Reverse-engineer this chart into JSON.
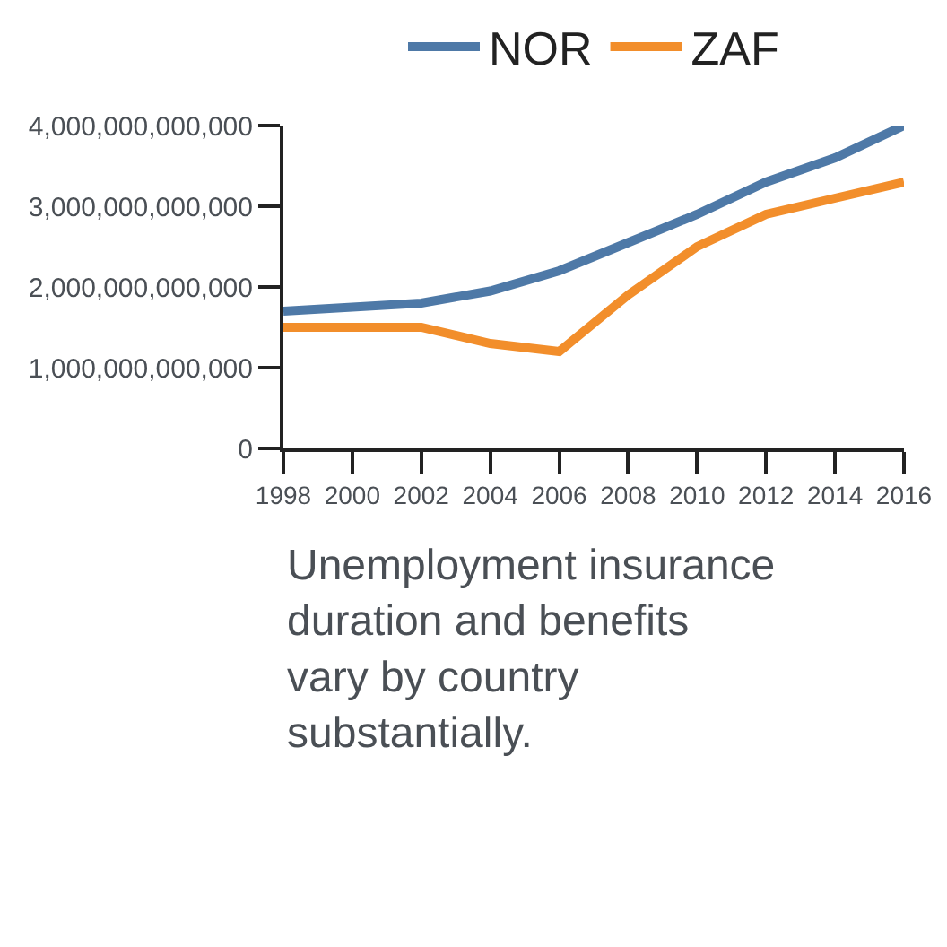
{
  "chart_data": {
    "type": "line",
    "x": [
      1998,
      2000,
      2002,
      2004,
      2006,
      2008,
      2010,
      2012,
      2014,
      2016
    ],
    "series": [
      {
        "name": "NOR",
        "color": "#4e79a7",
        "values": [
          1700000000000,
          1750000000000,
          1800000000000,
          1950000000000,
          2200000000000,
          2550000000000,
          2900000000000,
          3300000000000,
          3600000000000,
          4000000000000
        ]
      },
      {
        "name": "ZAF",
        "color": "#f28e2b",
        "values": [
          1500000000000,
          1500000000000,
          1500000000000,
          1300000000000,
          1200000000000,
          1900000000000,
          2500000000000,
          2900000000000,
          3100000000000,
          3300000000000
        ]
      }
    ],
    "xlim": [
      1998,
      2016
    ],
    "xticks": [
      1998,
      2000,
      2002,
      2004,
      2006,
      2008,
      2010,
      2012,
      2014,
      2016
    ],
    "ylim": [
      0,
      4000000000000
    ],
    "yticks": [
      {
        "value": 0,
        "label": "0"
      },
      {
        "value": 1000000000000,
        "label": "1,000,000,000,000"
      },
      {
        "value": 2000000000000,
        "label": "2,000,000,000,000"
      },
      {
        "value": 3000000000000,
        "label": "3,000,000,000,000"
      },
      {
        "value": 4000000000000,
        "label": "4,000,000,000,000"
      }
    ],
    "legend": "top",
    "annotations": [
      "Unemployment insurance duration and benefits vary by country substantially."
    ]
  }
}
